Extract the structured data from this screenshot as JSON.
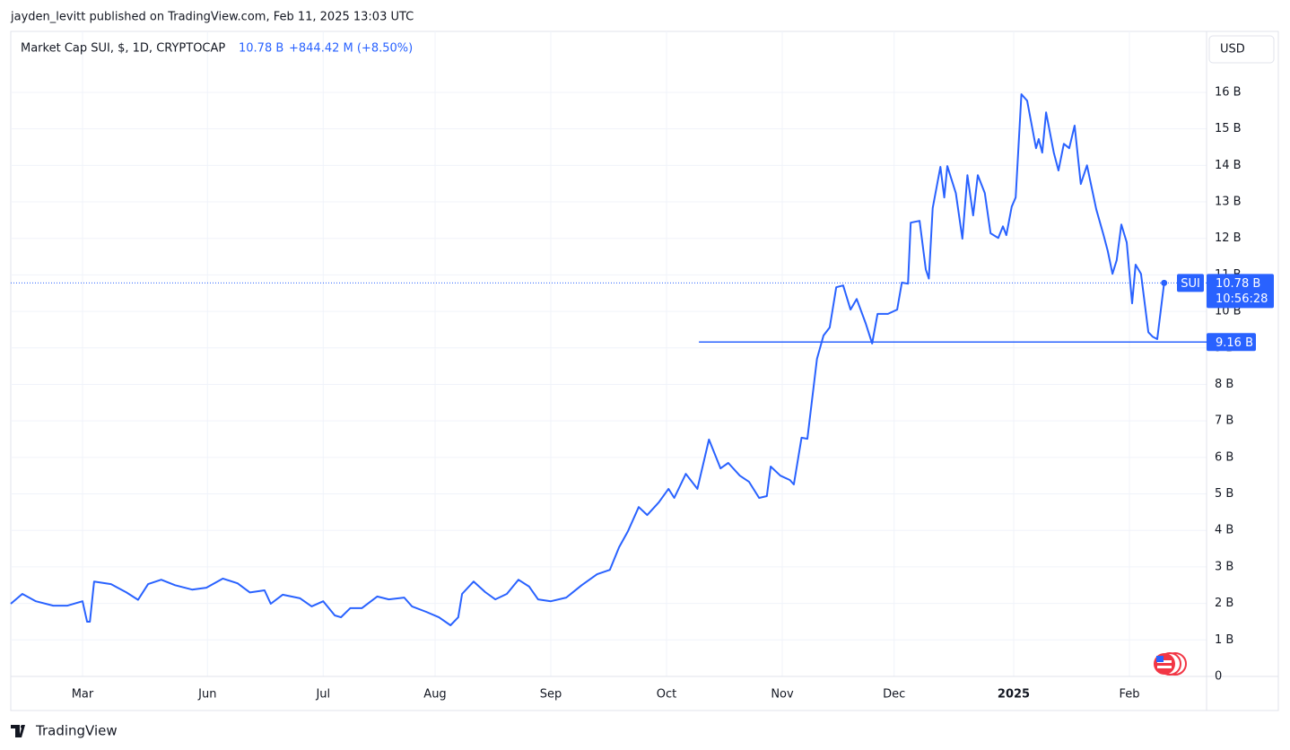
{
  "header": {
    "attribution": "jayden_levitt published on TradingView.com, Feb 11, 2025 13:03 UTC"
  },
  "footer": {
    "brand": "TradingView"
  },
  "chart_data": {
    "type": "line",
    "title": "Market Cap SUI, $, 1D, CRYPTOCAP",
    "last_label": "10.78 B",
    "change_label": "+844.42 M (+8.50%)",
    "currency_button": "USD",
    "x": [
      0,
      3,
      6.5,
      11,
      14.7,
      18.6,
      19.8,
      20.5,
      21.6,
      26,
      30,
      33,
      35.6,
      39,
      42.6,
      47,
      50.7,
      55,
      58.8,
      62,
      65.8,
      67.4,
      70.5,
      75,
      78,
      81,
      84,
      85.6,
      88,
      91,
      95,
      98,
      102,
      104,
      107.7,
      111,
      114,
      116,
      117,
      120,
      123,
      125.6,
      128.6,
      131.6,
      134.4,
      136.7,
      140,
      144,
      148,
      152,
      155.3,
      157.7,
      160,
      162.8,
      165,
      168,
      170.5,
      172,
      175,
      178,
      181,
      184,
      186,
      189,
      191.4,
      194,
      196,
      197,
      199.5,
      202,
      203,
      205,
      206.5,
      209,
      210.7,
      212.3,
      214,
      215.8,
      217.7,
      219.3,
      221.6,
      223.3,
      224.7,
      227.4,
      229.8,
      231,
      232.6,
      233.3,
      235.6,
      237.2,
      238,
      239,
      241,
      242,
      242.8,
      245,
      246.7,
      248,
      249.5,
      250.7,
      252.5,
      254,
      256,
      257.2,
      258.1,
      259.5,
      260.5,
      262,
      263.5,
      265.8,
      266.5,
      267.4,
      268.4,
      270.4,
      271.6,
      273,
      274.4,
      275.8,
      277.4,
      279,
      281.4,
      283.3,
      284.4,
      285.6,
      286.7,
      287.9,
      289.3,
      290.7,
      291.6,
      293,
      294.9,
      296,
      297.2,
      299
    ],
    "series": [
      {
        "name": "SUI",
        "color": "#2962ff",
        "values": [
          1.99,
          2.26,
          2.06,
          1.94,
          1.94,
          2.06,
          1.5,
          1.5,
          2.6,
          2.53,
          2.3,
          2.1,
          2.53,
          2.65,
          2.5,
          2.38,
          2.43,
          2.68,
          2.55,
          2.3,
          2.36,
          1.99,
          2.24,
          2.14,
          1.92,
          2.06,
          1.67,
          1.62,
          1.87,
          1.87,
          2.19,
          2.11,
          2.16,
          1.92,
          1.77,
          1.62,
          1.4,
          1.62,
          2.26,
          2.6,
          2.31,
          2.11,
          2.26,
          2.65,
          2.46,
          2.11,
          2.06,
          2.16,
          2.5,
          2.8,
          2.92,
          3.54,
          3.98,
          4.64,
          4.42,
          4.77,
          5.14,
          4.89,
          5.55,
          5.14,
          6.49,
          5.7,
          5.85,
          5.5,
          5.33,
          4.89,
          4.94,
          5.75,
          5.5,
          5.38,
          5.26,
          6.54,
          6.51,
          8.7,
          9.34,
          9.56,
          10.66,
          10.71,
          10.05,
          10.34,
          9.68,
          9.12,
          9.93,
          9.93,
          10.05,
          10.79,
          10.76,
          12.43,
          12.48,
          11.15,
          10.9,
          12.83,
          13.96,
          13.12,
          13.98,
          13.24,
          11.99,
          13.73,
          12.63,
          13.73,
          13.24,
          12.14,
          12.01,
          12.33,
          12.09,
          12.87,
          13.12,
          15.95,
          15.77,
          14.47,
          14.72,
          14.35,
          15.45,
          14.35,
          13.86,
          14.59,
          14.47,
          15.09,
          13.49,
          14.0,
          12.8,
          12.09,
          11.65,
          11.03,
          11.4,
          12.38,
          11.89,
          10.22,
          11.28,
          11.03,
          9.43,
          9.31,
          9.24,
          10.78
        ]
      }
    ],
    "price_tag": {
      "symbol": "SUI",
      "value": 10.78,
      "label": "10.78 B",
      "countdown": "10:56:28"
    },
    "hline": {
      "value": 9.16,
      "label": "9.16 B",
      "x_start": 178.4
    },
    "xlim": [
      0,
      310
    ],
    "xticks": [
      {
        "value": 18.6,
        "label": "Mar"
      },
      {
        "value": 51,
        "label": "Jun"
      },
      {
        "value": 81,
        "label": "Jul"
      },
      {
        "value": 110,
        "label": "Aug"
      },
      {
        "value": 140,
        "label": "Sep"
      },
      {
        "value": 170,
        "label": "Oct"
      },
      {
        "value": 200,
        "label": "Nov"
      },
      {
        "value": 229,
        "label": "Dec"
      },
      {
        "value": 260,
        "label": "2025",
        "bold": true
      },
      {
        "value": 290,
        "label": "Feb"
      }
    ],
    "ylim": [
      0,
      17.67
    ],
    "yticks": [
      0,
      {
        "value": 1,
        "label": "1 B"
      },
      {
        "value": 2,
        "label": "2 B"
      },
      {
        "value": 3,
        "label": "3 B"
      },
      {
        "value": 4,
        "label": "4 B"
      },
      {
        "value": 5,
        "label": "5 B"
      },
      {
        "value": 6,
        "label": "6 B"
      },
      {
        "value": 7,
        "label": "7 B"
      },
      {
        "value": 8,
        "label": "8 B"
      },
      {
        "value": 9,
        "label": "9 B"
      },
      {
        "value": 10,
        "label": "10 B"
      },
      {
        "value": 11,
        "label": "11 B"
      },
      {
        "value": 12,
        "label": "12 B"
      },
      {
        "value": 13,
        "label": "13 B"
      },
      {
        "value": 14,
        "label": "14 B"
      },
      {
        "value": 15,
        "label": "15 B"
      },
      {
        "value": 16,
        "label": "16 B"
      }
    ],
    "grid": true
  }
}
